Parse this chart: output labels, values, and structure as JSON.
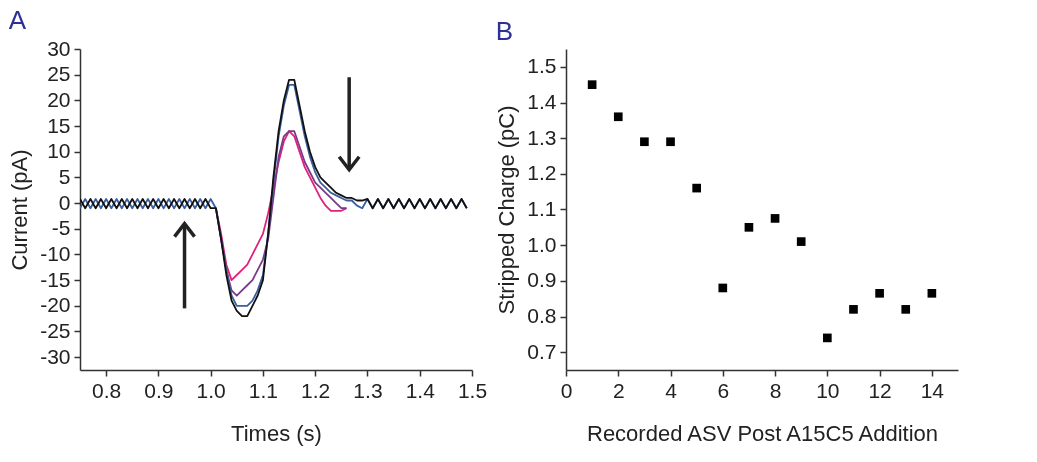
{
  "chart_data": [
    {
      "type": "line",
      "title": "A",
      "xlabel": "Times (s)",
      "ylabel": "Current (pA)",
      "xlim": [
        0.75,
        1.5
      ],
      "xticks": [
        0.8,
        0.9,
        {
          "value": 1,
          "label": "1.0"
        },
        1.1,
        1.2,
        1.3,
        1.4,
        1.5
      ],
      "ylim": [
        -32.5,
        30
      ],
      "yticks": [
        -30,
        -25,
        -20,
        -15,
        -10,
        -5,
        0,
        5,
        10,
        15,
        20,
        25,
        30
      ],
      "grid": false,
      "legend": false,
      "line_style": "solid",
      "marker": "none",
      "x": [
        0.75,
        0.76,
        0.77,
        0.78,
        0.79,
        0.8,
        0.81,
        0.82,
        0.83,
        0.84,
        0.85,
        0.86,
        0.87,
        0.88,
        0.89,
        0.9,
        0.91,
        0.92,
        0.93,
        0.94,
        0.95,
        0.96,
        0.97,
        0.98,
        0.99,
        1.0,
        1.01,
        1.02,
        1.03,
        1.04,
        1.05,
        1.06,
        1.07,
        1.08,
        1.09,
        1.1,
        1.11,
        1.12,
        1.13,
        1.14,
        1.15,
        1.16,
        1.17,
        1.18,
        1.19,
        1.2,
        1.21,
        1.22,
        1.23,
        1.24,
        1.25,
        1.26,
        1.27,
        1.28,
        1.29,
        1.3,
        1.31,
        1.32,
        1.33,
        1.34,
        1.35,
        1.36,
        1.37,
        1.38,
        1.39,
        1.4,
        1.41,
        1.42,
        1.43,
        1.44,
        1.45,
        1.46,
        1.47,
        1.48,
        1.49
      ],
      "series": [
        {
          "color": "#e0207a",
          "values": [
            null,
            null,
            null,
            null,
            null,
            null,
            null,
            null,
            null,
            null,
            null,
            null,
            null,
            null,
            null,
            null,
            null,
            null,
            null,
            null,
            null,
            null,
            null,
            null,
            null,
            null,
            -1,
            -6,
            -12,
            -15,
            -14,
            -13,
            -12,
            -10,
            -8,
            -6,
            -2,
            3,
            8,
            12,
            14,
            13,
            10,
            7,
            5,
            3,
            1,
            -0.5,
            -1.5,
            -1.5,
            -1.5,
            -1,
            null,
            null,
            null,
            null,
            null,
            null,
            null,
            null,
            null,
            null,
            null,
            null,
            null,
            null,
            null,
            null,
            null,
            null,
            null,
            null,
            null,
            null,
            null
          ]
        },
        {
          "color": "#7a3a8a",
          "values": [
            null,
            null,
            null,
            null,
            null,
            null,
            null,
            null,
            null,
            null,
            null,
            null,
            null,
            null,
            null,
            null,
            null,
            null,
            null,
            null,
            null,
            null,
            null,
            null,
            null,
            null,
            -1,
            -7,
            -13,
            -17,
            -18,
            -17,
            -16,
            -15,
            -13,
            -11,
            -7,
            1,
            9,
            13,
            14,
            14,
            11,
            8,
            6,
            4,
            3,
            2,
            1,
            0,
            -1,
            -1,
            null,
            null,
            null,
            null,
            null,
            null,
            null,
            null,
            null,
            null,
            null,
            null,
            null,
            null,
            null,
            null,
            null,
            null,
            null,
            null,
            null,
            null,
            null
          ]
        },
        {
          "color": "#3a5fa0",
          "values": [
            -1,
            0.8,
            -1,
            0.8,
            -1,
            0.8,
            -1,
            0.8,
            -1,
            0.8,
            -1,
            0.8,
            -1,
            0.8,
            -1,
            0.8,
            -1,
            0.8,
            -1,
            0.8,
            -1,
            0.8,
            -1,
            0.8,
            -1,
            0.8,
            -1,
            -7,
            -13,
            -18,
            -20,
            -20,
            -20,
            -19,
            -17,
            -14,
            -6,
            4,
            13,
            19,
            23,
            23,
            18,
            13,
            9,
            6,
            4,
            3,
            2,
            1.5,
            1,
            0.5,
            0.5,
            -0.5,
            -1,
            0.8,
            -1,
            0.8,
            -1,
            0.8,
            -1,
            0.8,
            -1,
            0.8,
            -1,
            0.8,
            -1,
            0.8,
            -1,
            0.8,
            -1,
            0.8,
            -1,
            0.8,
            -1
          ]
        },
        {
          "color": "#111111",
          "values": [
            0.8,
            -1,
            0.8,
            -1,
            0.8,
            -1,
            0.8,
            -1,
            0.8,
            -1,
            0.8,
            -1,
            0.8,
            -1,
            0.8,
            -1,
            0.8,
            -1,
            0.8,
            -1,
            0.8,
            -1,
            0.8,
            -1,
            0.8,
            -1,
            -1,
            -7,
            -14,
            -19,
            -21,
            -22,
            -22,
            -20,
            -18,
            -15,
            -6,
            5,
            14,
            20,
            24,
            24,
            19,
            14,
            10,
            7,
            5,
            4,
            3,
            2,
            1.5,
            1,
            1,
            0.5,
            0.5,
            0.8,
            -1,
            0.8,
            -1,
            0.8,
            -1,
            0.8,
            -1,
            0.8,
            -1,
            0.8,
            -1,
            0.8,
            -1,
            0.8,
            -1,
            0.8,
            -1,
            0.8,
            -1
          ]
        }
      ]
    },
    {
      "type": "scatter",
      "title": "B",
      "xlabel": "Recorded ASV Post A15C5 Addition",
      "ylabel": "Stripped Charge (pC)",
      "xlim": [
        0,
        15
      ],
      "xticks": [
        0,
        2,
        4,
        6,
        8,
        10,
        12,
        14
      ],
      "ylim": [
        0.65,
        1.55
      ],
      "yticks": [
        0.7,
        0.8,
        0.9,
        {
          "value": 1,
          "label": "1.0"
        },
        1.1,
        1.2,
        1.3,
        1.4,
        1.5
      ],
      "grid": false,
      "legend": false,
      "marker": "square",
      "x": [
        1,
        2,
        3,
        4,
        5,
        6,
        7,
        8,
        9,
        10,
        11,
        12,
        13,
        14
      ],
      "series": [
        {
          "color": "#000000",
          "values": [
            1.45,
            1.36,
            1.29,
            1.29,
            1.16,
            0.88,
            1.05,
            1.075,
            1.01,
            0.74,
            0.82,
            0.865,
            0.82,
            0.865
          ]
        }
      ]
    }
  ]
}
